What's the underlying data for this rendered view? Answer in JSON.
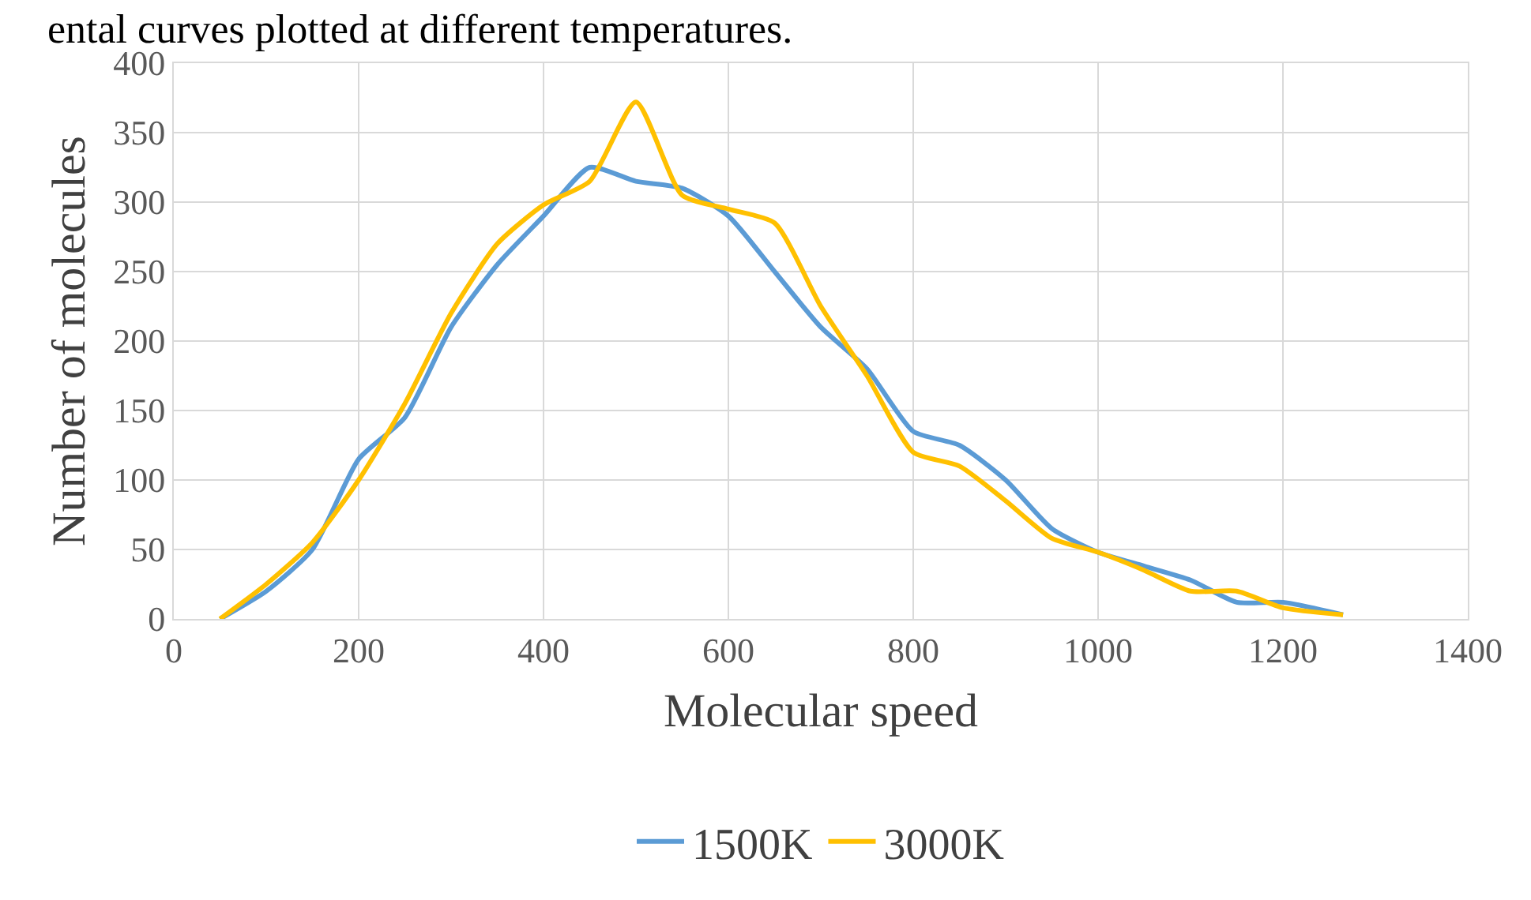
{
  "chart_data": {
    "type": "line",
    "xlabel": "Molecular speed",
    "ylabel": "Number of molecules",
    "annotations": [
      "ental curves plotted at different temperatures."
    ],
    "x": [
      50,
      100,
      150,
      200,
      250,
      300,
      350,
      400,
      450,
      500,
      550,
      600,
      650,
      700,
      750,
      800,
      850,
      900,
      950,
      1000,
      1050,
      1100,
      1150,
      1200,
      1265
    ],
    "series": [
      {
        "name": "1500K",
        "color": "#5b9bd5",
        "values": [
          0,
          20,
          50,
          115,
          145,
          210,
          255,
          290,
          325,
          315,
          310,
          290,
          250,
          210,
          180,
          135,
          125,
          100,
          65,
          48,
          38,
          28,
          12,
          12,
          3
        ]
      },
      {
        "name": "3000K",
        "color": "#ffc000",
        "values": [
          0,
          25,
          55,
          100,
          155,
          220,
          270,
          298,
          315,
          372,
          305,
          295,
          285,
          225,
          175,
          120,
          110,
          85,
          58,
          48,
          35,
          20,
          20,
          8,
          3
        ]
      }
    ],
    "xlim": [
      0,
      1400
    ],
    "xticks": [
      0,
      200,
      400,
      600,
      800,
      1000,
      1200,
      1400
    ],
    "ylim": [
      0,
      400
    ],
    "yticks": [
      0,
      50,
      100,
      150,
      200,
      250,
      300,
      350,
      400
    ],
    "grid": true,
    "legend": "bottom",
    "marker": "none",
    "line_style": "solid"
  }
}
